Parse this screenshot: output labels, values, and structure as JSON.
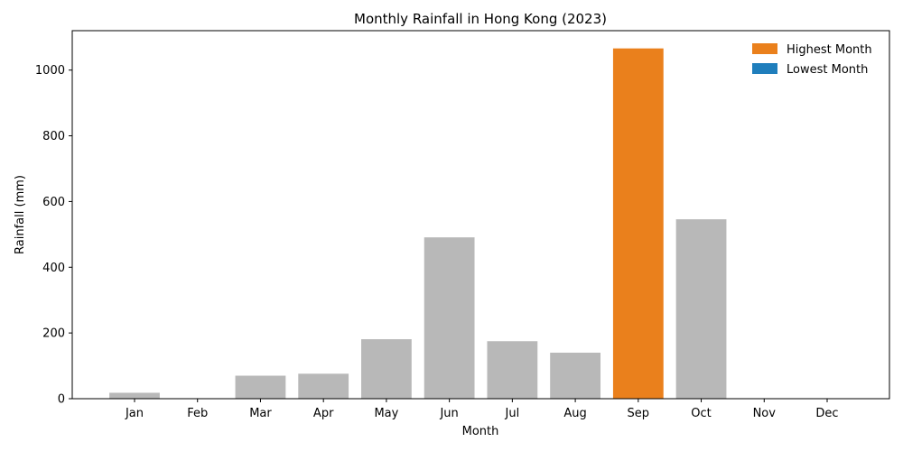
{
  "chart_data": {
    "type": "bar",
    "title": "Monthly Rainfall in Hong Kong (2023)",
    "xlabel": "Month",
    "ylabel": "Rainfall (mm)",
    "categories": [
      "Jan",
      "Feb",
      "Mar",
      "Apr",
      "May",
      "Jun",
      "Jul",
      "Aug",
      "Sep",
      "Oct",
      "Nov",
      "Dec"
    ],
    "values": [
      18,
      1,
      70,
      76,
      181,
      491,
      175,
      140,
      1066,
      546,
      1,
      1
    ],
    "ylim": [
      0,
      1120
    ],
    "yticks": [
      0,
      200,
      400,
      600,
      800,
      1000
    ],
    "highest_index": 8,
    "lowest_indices": [
      1,
      10,
      11
    ],
    "colors": {
      "default": "#b8b8b8",
      "highest": "#ea801c",
      "lowest": "#1f7ebc"
    },
    "legend": {
      "placement": "top-right",
      "entries": [
        {
          "label": "Highest Month",
          "color": "#ea801c"
        },
        {
          "label": "Lowest Month",
          "color": "#1f7ebc"
        }
      ]
    },
    "grid": false
  }
}
